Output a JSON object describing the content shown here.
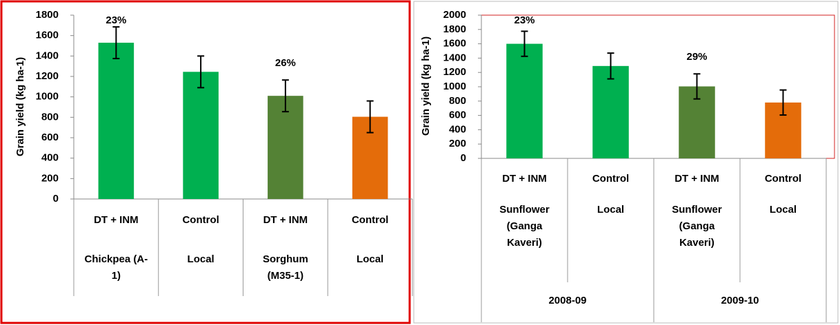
{
  "chart_data": [
    {
      "type": "bar",
      "y_label": "Grain yield (kg ha-1)",
      "categories": [
        "DT + INM",
        "Control",
        "DT + INM",
        "Control"
      ],
      "subcategories": [
        "Chickpea (A-1)",
        "Local",
        "Sorghum (M35-1)",
        "Local"
      ],
      "values": [
        1530,
        1245,
        1010,
        805
      ],
      "errors": [
        155,
        155,
        155,
        155
      ],
      "colors": [
        "#00b050",
        "#00b050",
        "#548235",
        "#e46c0a"
      ],
      "annotations": [
        "23%",
        null,
        "26%",
        null
      ],
      "ylim": [
        0,
        1800
      ],
      "yticks": [
        0,
        200,
        400,
        600,
        800,
        1000,
        1200,
        1400,
        1600,
        1800
      ]
    },
    {
      "type": "bar",
      "y_label": "Grain yield (kg ha-1)",
      "categories": [
        "DT + INM",
        "Control",
        "DT + INM",
        "Control"
      ],
      "subcategories": [
        "Sunflower (Ganga Kaveri)",
        "Local",
        "Sunflower (Ganga Kaveri)",
        "Local"
      ],
      "groups": [
        "2008-09",
        "2009-10"
      ],
      "values": [
        1600,
        1290,
        1005,
        780
      ],
      "errors": [
        175,
        180,
        175,
        175
      ],
      "colors": [
        "#00b050",
        "#00b050",
        "#548235",
        "#e46c0a"
      ],
      "annotations": [
        "23%",
        null,
        "29%",
        null
      ],
      "ylim": [
        0,
        2000
      ],
      "yticks": [
        0,
        200,
        400,
        600,
        800,
        1000,
        1200,
        1400,
        1600,
        1800,
        2000
      ]
    }
  ]
}
